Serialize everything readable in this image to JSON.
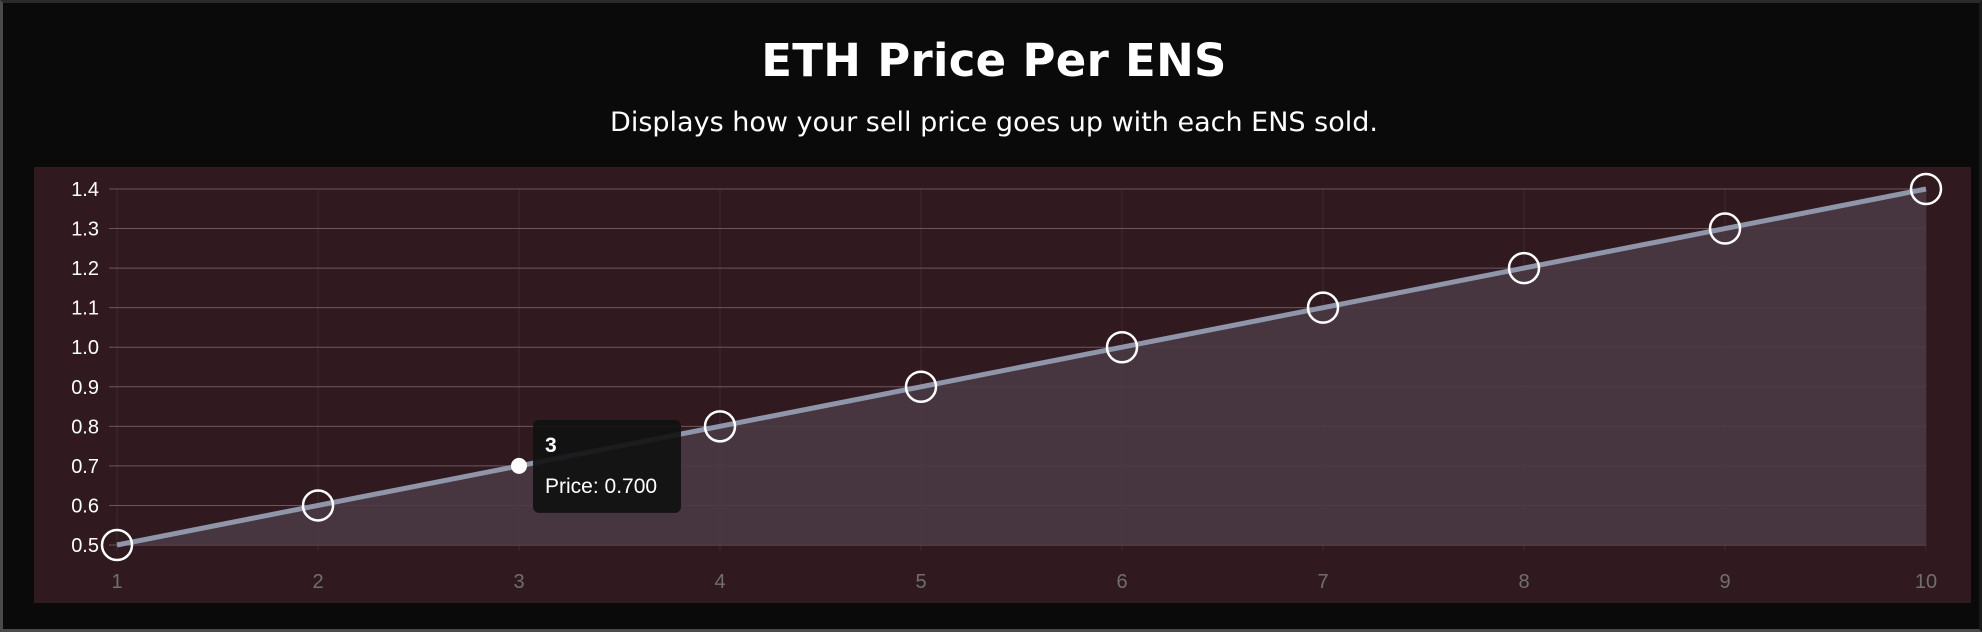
{
  "title": "ETH Price Per ENS",
  "subtitle": "Displays how your sell price goes up with each ENS sold.",
  "colors": {
    "page_background": "#0a0a0a",
    "chart_background": "#301a20",
    "area_fill": "#4a3a42",
    "line": "#8f96aa",
    "point_stroke": "#ffffff",
    "tooltip_background": "#111111"
  },
  "tooltip": {
    "title": "3",
    "body": "Price: 0.700",
    "x": 3
  },
  "chart_data": {
    "type": "area",
    "title": "ETH Price Per ENS",
    "subtitle": "Displays how your sell price goes up with each ENS sold.",
    "x": [
      1,
      2,
      3,
      4,
      5,
      6,
      7,
      8,
      9,
      10
    ],
    "series": [
      {
        "values": [
          0.5,
          0.6,
          0.7,
          0.8,
          0.9,
          1.0,
          1.1,
          1.2,
          1.3,
          1.4
        ]
      }
    ],
    "xlim": [
      1,
      10
    ],
    "ylim": [
      0.5,
      1.4
    ],
    "yticks": [
      "0.5",
      "0.6",
      "0.7",
      "0.8",
      "0.9",
      "1.0",
      "1.1",
      "1.2",
      "1.3",
      "1.4"
    ],
    "xticks": [
      "1",
      "2",
      "3",
      "4",
      "5",
      "6",
      "7",
      "8",
      "9",
      "10"
    ],
    "xlabel": "",
    "ylabel": "",
    "grid": true,
    "legend": "none"
  }
}
